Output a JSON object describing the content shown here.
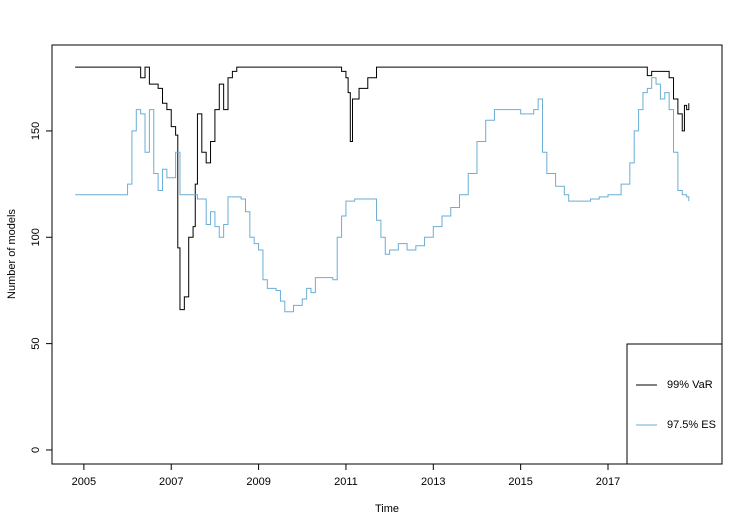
{
  "chart_data": {
    "type": "line",
    "step": true,
    "xlabel": "Time",
    "ylabel": "Number of models",
    "xlim": [
      2004.27,
      2019.61
    ],
    "xticks": [
      2005,
      2007,
      2009,
      2011,
      2013,
      2015,
      2017
    ],
    "ylim": [
      -6.6,
      190.4
    ],
    "yticks": [
      0,
      50,
      100,
      150
    ],
    "legend": "bottomright",
    "series": [
      {
        "name": "99% VaR",
        "color": "#000000",
        "x": [
          2004.8,
          2006.2,
          2006.3,
          2006.4,
          2006.5,
          2006.7,
          2006.8,
          2006.9,
          2007.0,
          2007.1,
          2007.15,
          2007.2,
          2007.3,
          2007.4,
          2007.5,
          2007.55,
          2007.6,
          2007.7,
          2007.8,
          2007.9,
          2008.0,
          2008.1,
          2008.2,
          2008.3,
          2008.4,
          2008.5,
          2010.8,
          2010.9,
          2011.0,
          2011.05,
          2011.1,
          2011.15,
          2011.3,
          2011.5,
          2011.7,
          2017.8,
          2017.9,
          2018.0,
          2018.2,
          2018.4,
          2018.5,
          2018.6,
          2018.7,
          2018.75,
          2018.8,
          2018.85
        ],
        "values": [
          180,
          180,
          175,
          180,
          172,
          170,
          163,
          160,
          152,
          148,
          95,
          66,
          72,
          100,
          105,
          125,
          158,
          140,
          135,
          145,
          160,
          172,
          160,
          175,
          178,
          180,
          180,
          178,
          175,
          168,
          145,
          165,
          170,
          175,
          180,
          180,
          176,
          178,
          178,
          175,
          165,
          158,
          150,
          162,
          160,
          163
        ]
      },
      {
        "name": "97.5% ES",
        "color": "#6baed6",
        "x": [
          2004.8,
          2005.9,
          2006.0,
          2006.1,
          2006.2,
          2006.3,
          2006.4,
          2006.5,
          2006.6,
          2006.7,
          2006.8,
          2006.9,
          2007.0,
          2007.1,
          2007.2,
          2007.5,
          2007.6,
          2007.8,
          2007.9,
          2008.0,
          2008.1,
          2008.2,
          2008.3,
          2008.6,
          2008.7,
          2008.8,
          2008.9,
          2009.0,
          2009.1,
          2009.2,
          2009.4,
          2009.5,
          2009.6,
          2009.8,
          2010.0,
          2010.1,
          2010.2,
          2010.3,
          2010.7,
          2010.8,
          2010.9,
          2011.0,
          2011.2,
          2011.6,
          2011.7,
          2011.8,
          2011.9,
          2012.0,
          2012.2,
          2012.4,
          2012.6,
          2012.8,
          2013.0,
          2013.2,
          2013.4,
          2013.6,
          2013.8,
          2014.0,
          2014.2,
          2014.4,
          2014.6,
          2014.8,
          2015.0,
          2015.3,
          2015.4,
          2015.5,
          2015.6,
          2015.8,
          2016.0,
          2016.1,
          2016.3,
          2016.6,
          2016.8,
          2017.0,
          2017.3,
          2017.5,
          2017.6,
          2017.7,
          2017.8,
          2017.9,
          2018.0,
          2018.1,
          2018.2,
          2018.3,
          2018.4,
          2018.5,
          2018.6,
          2018.7,
          2018.8,
          2018.85
        ],
        "values": [
          120,
          120,
          125,
          150,
          160,
          158,
          140,
          160,
          130,
          122,
          132,
          128,
          128,
          140,
          120,
          120,
          118,
          106,
          112,
          105,
          100,
          106,
          119,
          118,
          112,
          100,
          97,
          94,
          80,
          76,
          75,
          70,
          65,
          68,
          71,
          76,
          74,
          81,
          80,
          100,
          110,
          117,
          118,
          118,
          108,
          100,
          92,
          94,
          97,
          94,
          96,
          100,
          105,
          110,
          114,
          120,
          130,
          145,
          155,
          160,
          160,
          160,
          158,
          160,
          165,
          140,
          130,
          124,
          120,
          117,
          117,
          118,
          119,
          120,
          125,
          135,
          150,
          160,
          168,
          170,
          175,
          172,
          165,
          168,
          160,
          140,
          122,
          120,
          119,
          117
        ]
      }
    ]
  }
}
